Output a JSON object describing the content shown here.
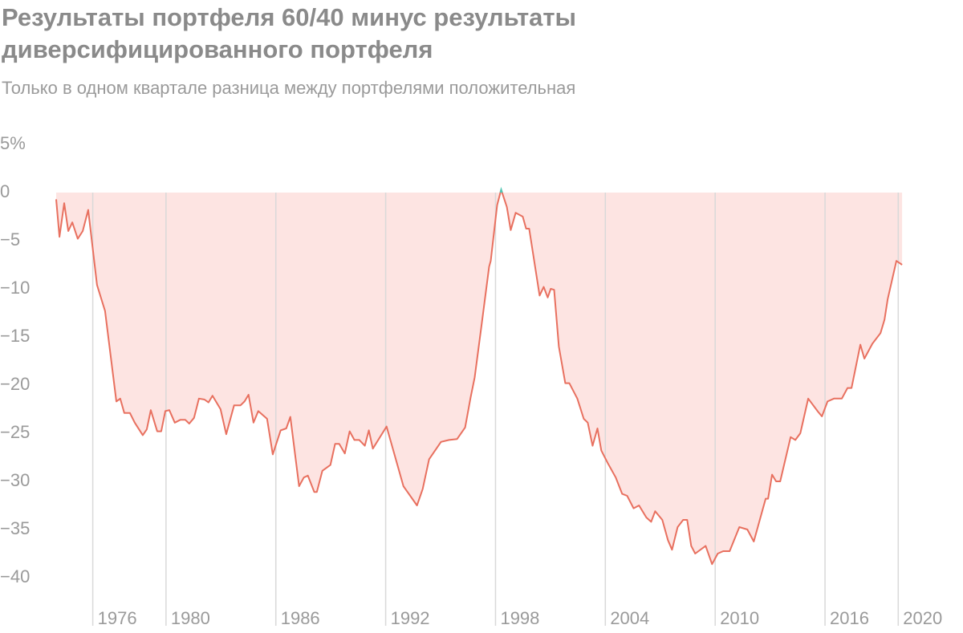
{
  "chart_data": {
    "type": "area",
    "title": "Результаты портфеля 60/40 минус результаты диверсифицированного портфеля",
    "subtitle": "Только в одном квартале разница между портфелями положительная",
    "color": "#e8705f",
    "fill_color": "#fde4e2",
    "positive_color": "#4cc9b5",
    "grid": true,
    "xlim": [
      1974,
      2020.25
    ],
    "xticks": [
      1976,
      1980,
      1986,
      1992,
      1998,
      2004,
      2010,
      2016,
      2020
    ],
    "ylim": [
      -45,
      5
    ],
    "yticks": [
      {
        "value": 5,
        "label": "5%"
      },
      0,
      {
        "value": -5,
        "label": "−5"
      },
      {
        "value": -10,
        "label": "−10"
      },
      {
        "value": -15,
        "label": "−15"
      },
      {
        "value": -20,
        "label": "−20"
      },
      {
        "value": -25,
        "label": "−25"
      },
      {
        "value": -30,
        "label": "−30"
      },
      {
        "value": -35,
        "label": "−35"
      },
      {
        "value": -40,
        "label": "−40"
      }
    ],
    "x": [
      1974.0,
      1974.18,
      1974.44,
      1974.66,
      1974.88,
      1975.18,
      1975.45,
      1975.75,
      1976.23,
      1976.67,
      1977.29,
      1977.5,
      1977.72,
      1978.03,
      1978.29,
      1978.73,
      1978.95,
      1979.17,
      1979.52,
      1979.74,
      1979.96,
      1980.18,
      1980.48,
      1980.79,
      1981.05,
      1981.27,
      1981.53,
      1981.8,
      1982.1,
      1982.32,
      1982.54,
      1982.98,
      1983.29,
      1983.72,
      1984.07,
      1984.29,
      1984.51,
      1984.78,
      1985.04,
      1985.52,
      1985.83,
      1986.26,
      1986.57,
      1986.79,
      1987.27,
      1987.53,
      1987.75,
      1988.1,
      1988.24,
      1988.54,
      1988.98,
      1989.24,
      1989.46,
      1989.77,
      1990.03,
      1990.29,
      1990.56,
      1990.86,
      1991.08,
      1991.3,
      1992.05,
      1992.97,
      1993.71,
      1994.02,
      1994.37,
      1995.02,
      1995.46,
      1995.9,
      1996.34,
      1996.64,
      1996.86,
      1997.21,
      1997.65,
      1997.74,
      1998.09,
      1998.31,
      1998.62,
      1998.83,
      1999.1,
      1999.49,
      1999.67,
      1999.84,
      2000.41,
      2000.63,
      2000.85,
      2001.02,
      2001.2,
      2001.46,
      2001.81,
      2002.03,
      2002.47,
      2002.82,
      2003.04,
      2003.3,
      2003.57,
      2003.78,
      2004.13,
      2004.57,
      2004.92,
      2005.19,
      2005.54,
      2005.84,
      2006.24,
      2006.5,
      2006.72,
      2007.11,
      2007.42,
      2007.64,
      2007.95,
      2008.25,
      2008.47,
      2008.69,
      2008.91,
      2009.48,
      2009.83,
      2010.14,
      2010.44,
      2010.79,
      2011.32,
      2011.76,
      2012.11,
      2012.76,
      2012.89,
      2013.11,
      2013.33,
      2013.55,
      2014.12,
      2014.38,
      2014.65,
      2015.08,
      2015.61,
      2015.83,
      2016.14,
      2016.49,
      2016.92,
      2017.23,
      2017.45,
      2017.93,
      2018.15,
      2018.59,
      2019.03,
      2019.25,
      2019.42,
      2019.9,
      2020.21
    ],
    "values": [
      -0.7,
      -4.6,
      -1.1,
      -4,
      -3.1,
      -4.8,
      -4,
      -1.8,
      -9.6,
      -12.3,
      -21.7,
      -21.4,
      -22.9,
      -22.9,
      -23.9,
      -25.2,
      -24.6,
      -22.6,
      -24.8,
      -24.8,
      -22.7,
      -22.6,
      -23.9,
      -23.6,
      -23.6,
      -24,
      -23.4,
      -21.4,
      -21.5,
      -21.8,
      -21.1,
      -22.5,
      -25.1,
      -22.1,
      -22.1,
      -21.7,
      -21,
      -23.9,
      -22.7,
      -23.5,
      -27.2,
      -24.7,
      -24.5,
      -23.3,
      -30.5,
      -29.6,
      -29.4,
      -31.1,
      -31.1,
      -28.9,
      -28.3,
      -26.1,
      -26.1,
      -27.1,
      -24.8,
      -25.7,
      -25.7,
      -26.3,
      -24.7,
      -26.6,
      -24.3,
      -30.5,
      -32.5,
      -30.8,
      -27.7,
      -25.9,
      -25.7,
      -25.6,
      -24.4,
      -21.3,
      -19.2,
      -14.2,
      -7.7,
      -7.1,
      -1.3,
      0.3,
      -1.5,
      -3.9,
      -2.1,
      -2.5,
      -3.75,
      -3.75,
      -10.7,
      -9.8,
      -10.9,
      -10,
      -10.1,
      -16,
      -19.8,
      -19.8,
      -21.4,
      -23.5,
      -23.9,
      -26.3,
      -24.5,
      -26.8,
      -28.1,
      -29.6,
      -31.3,
      -31.5,
      -32.8,
      -32.5,
      -33.75,
      -34.2,
      -33.1,
      -34,
      -36.1,
      -37.1,
      -34.75,
      -34,
      -34,
      -36.7,
      -37.5,
      -36.7,
      -38.6,
      -37.5,
      -37.25,
      -37.25,
      -34.75,
      -35,
      -36.25,
      -31.8,
      -31.8,
      -29.3,
      -30,
      -30,
      -25.4,
      -25.7,
      -25,
      -21.4,
      -22.75,
      -23.25,
      -21.7,
      -21.4,
      -21.4,
      -20.3,
      -20.3,
      -15.8,
      -17.25,
      -15.7,
      -14.6,
      -13.2,
      -11.1,
      -7.1,
      -7.5
    ]
  }
}
